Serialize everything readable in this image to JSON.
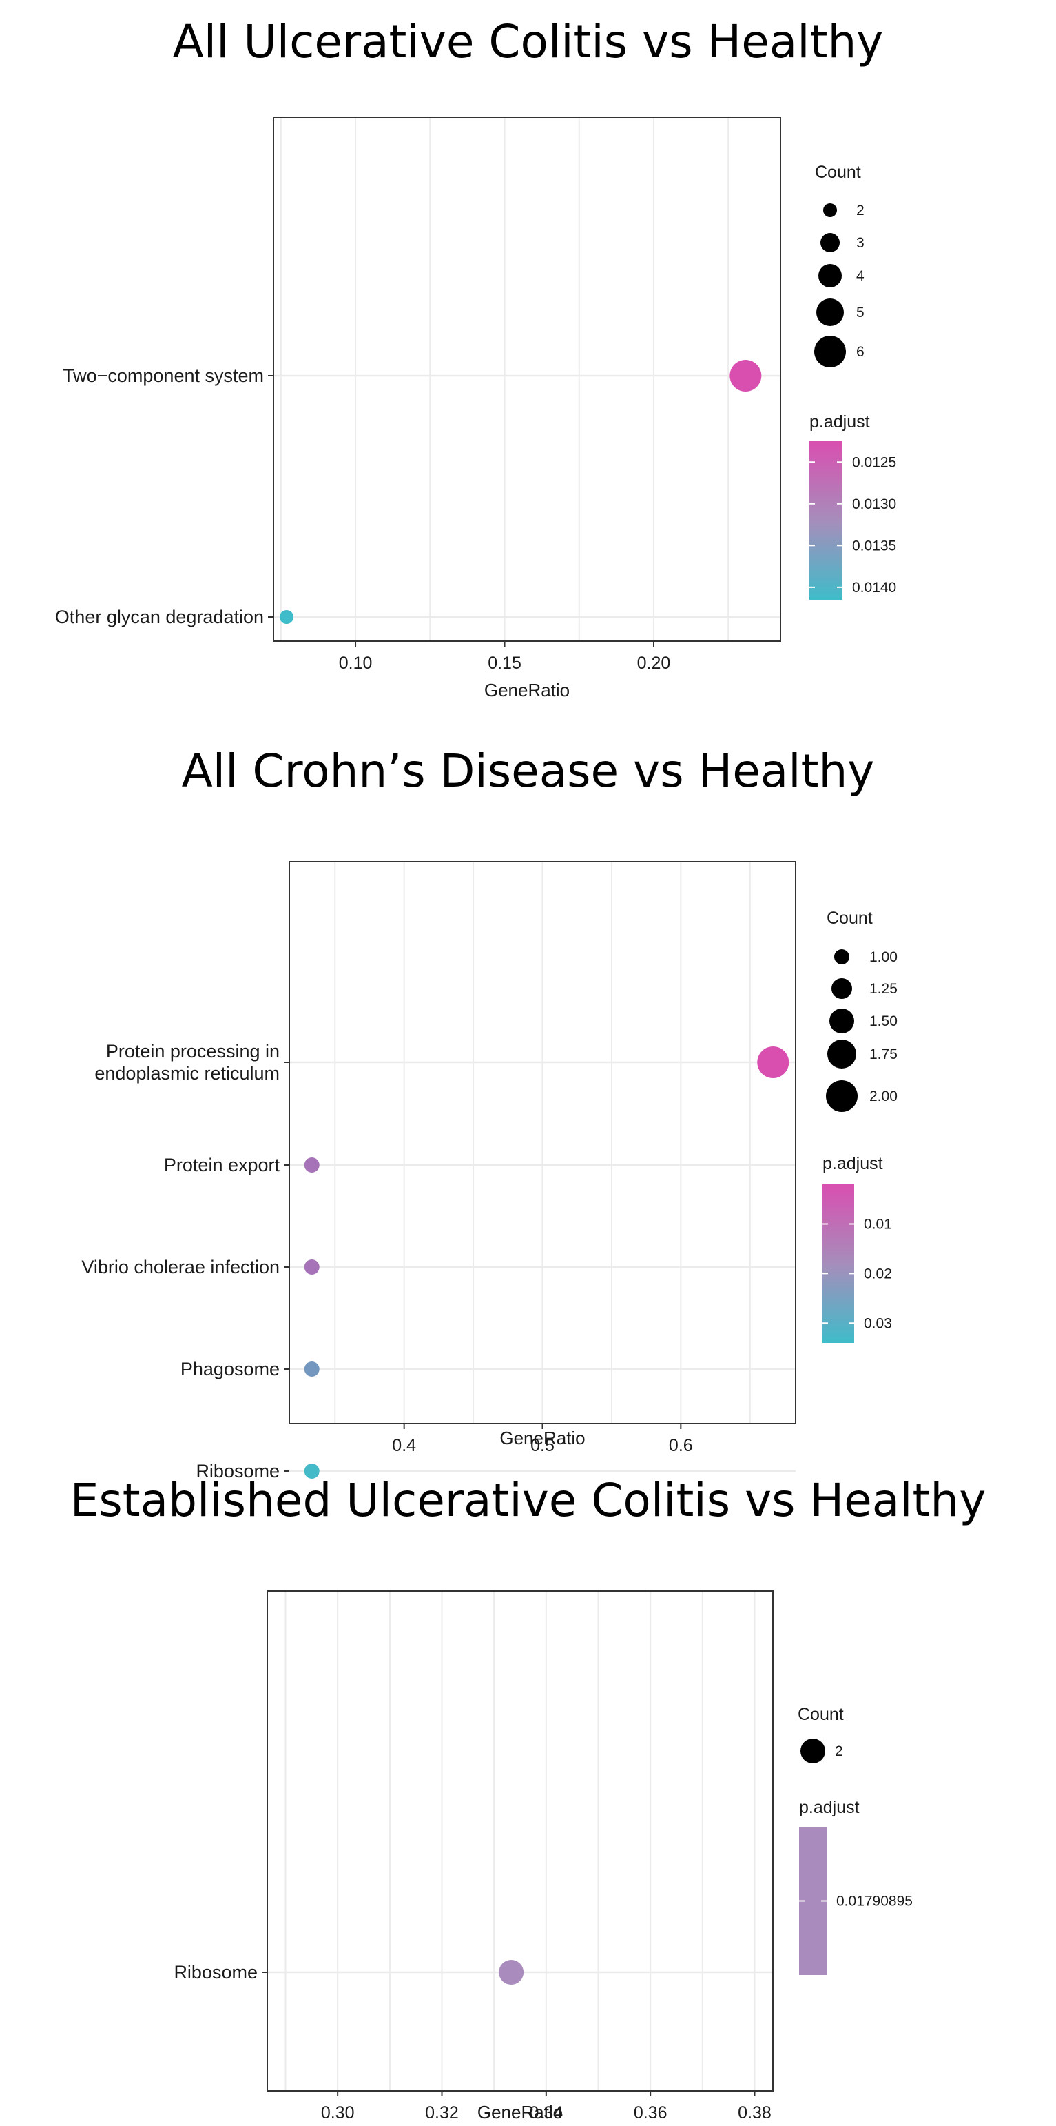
{
  "colors": {
    "high": "#d94fb0",
    "low": "#3fbcc9",
    "grid": "#ebebeb",
    "frame": "#333333",
    "size_key": "#000000"
  },
  "chart_data": [
    {
      "type": "scatter",
      "title": "All Ulcerative Colitis vs Healthy",
      "xlabel": "GeneRatio",
      "ylabel": "",
      "categories": [
        "Two−component system",
        "Other glycan degradation"
      ],
      "xlim": [
        0.0725,
        0.2425
      ],
      "xticks": [
        "0.10",
        "0.15",
        "0.20"
      ],
      "xtick_values": [
        0.1,
        0.15,
        0.2
      ],
      "grid": true,
      "legend_position": "right",
      "points": [
        {
          "category": "Two−component system",
          "x": 0.2308,
          "count": 6,
          "p_adjust": 0.01225
        },
        {
          "category": "Other glycan degradation",
          "x": 0.0769,
          "count": 2,
          "p_adjust": 0.01415
        }
      ],
      "size_legend": {
        "title": "Count",
        "labels": [
          "2",
          "3",
          "4",
          "5",
          "6"
        ],
        "values": [
          2,
          3,
          4,
          5,
          6
        ]
      },
      "color_legend": {
        "title": "p.adjust",
        "labels": [
          "0.0125",
          "0.0130",
          "0.0135",
          "0.0140"
        ],
        "values": [
          0.0125,
          0.013,
          0.0135,
          0.014
        ],
        "range": [
          0.01225,
          0.01415
        ]
      }
    },
    {
      "type": "scatter",
      "title": "All Crohn’s Disease vs Healthy",
      "xlabel": "GeneRatio",
      "ylabel": "",
      "categories": [
        "Protein processing in\nendoplasmic reticulum",
        "Protein export",
        "Vibrio cholerae infection",
        "Phagosome",
        "Ribosome"
      ],
      "xlim": [
        0.317,
        0.683
      ],
      "xticks": [
        "0.4",
        "0.5",
        "0.6"
      ],
      "xtick_values": [
        0.4,
        0.5,
        0.6
      ],
      "grid": true,
      "legend_position": "right",
      "points": [
        {
          "category": "Protein processing in\nendoplasmic reticulum",
          "x": 0.6667,
          "count": 2,
          "p_adjust": 0.002
        },
        {
          "category": "Protein export",
          "x": 0.3333,
          "count": 1,
          "p_adjust": 0.0125
        },
        {
          "category": "Vibrio cholerae infection",
          "x": 0.3333,
          "count": 1,
          "p_adjust": 0.0125
        },
        {
          "category": "Phagosome",
          "x": 0.3333,
          "count": 1,
          "p_adjust": 0.023
        },
        {
          "category": "Ribosome",
          "x": 0.3333,
          "count": 1,
          "p_adjust": 0.033
        }
      ],
      "size_legend": {
        "title": "Count",
        "labels": [
          "1.00",
          "1.25",
          "1.50",
          "1.75",
          "2.00"
        ],
        "values": [
          1.0,
          1.25,
          1.5,
          1.75,
          2.0
        ]
      },
      "color_legend": {
        "title": "p.adjust",
        "labels": [
          "0.01",
          "0.02",
          "0.03"
        ],
        "values": [
          0.01,
          0.02,
          0.03
        ],
        "range": [
          0.002,
          0.034
        ]
      }
    },
    {
      "type": "scatter",
      "title": "Established Ulcerative Colitis vs Healthy",
      "xlabel": "GeneRatio",
      "ylabel": "",
      "categories": [
        "Ribosome"
      ],
      "xlim": [
        0.2865,
        0.3835
      ],
      "xticks": [
        "0.30",
        "0.32",
        "0.34",
        "0.36",
        "0.38"
      ],
      "xtick_values": [
        0.3,
        0.32,
        0.34,
        0.36,
        0.38
      ],
      "grid": true,
      "legend_position": "right",
      "points": [
        {
          "category": "Ribosome",
          "x": 0.3333,
          "count": 2,
          "p_adjust": 0.01790895
        }
      ],
      "size_legend": {
        "title": "Count",
        "labels": [
          "2"
        ],
        "values": [
          2
        ]
      },
      "color_legend": {
        "title": "p.adjust",
        "labels": [
          "0.01790895"
        ],
        "values": [
          0.01790895
        ],
        "range": [
          0.01790895,
          0.01790895
        ],
        "single_color": "#a98bbd"
      }
    }
  ]
}
